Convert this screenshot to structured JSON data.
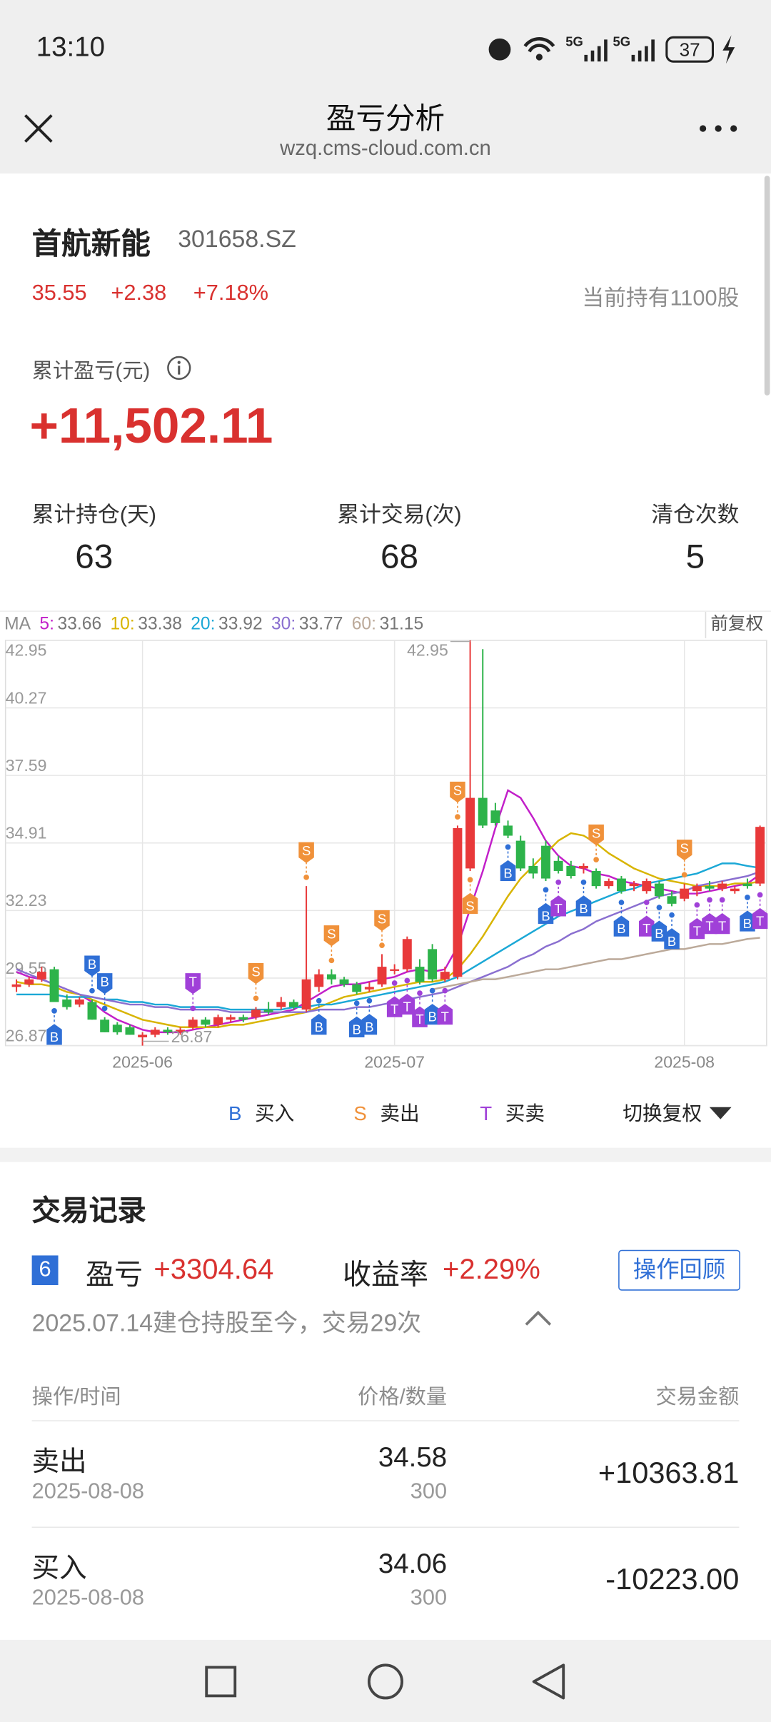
{
  "status_bar": {
    "time": "13:10",
    "network": [
      "5G",
      "5G"
    ],
    "battery": "37"
  },
  "nav": {
    "title": "盈亏分析",
    "url": "wzq.cms-cloud.com.cn"
  },
  "stock": {
    "name": "首航新能",
    "code": "301658.SZ",
    "price": "35.55",
    "change": "+2.38",
    "change_pct": "+7.18%",
    "holding": "当前持有1100股"
  },
  "pnl": {
    "label": "累计盈亏(元)",
    "value": "+11,502.11"
  },
  "stats": [
    {
      "label": "累计持仓(天)",
      "value": "63"
    },
    {
      "label": "累计交易(次)",
      "value": "68"
    },
    {
      "label": "清仓次数",
      "value": "5"
    }
  ],
  "chart_data": {
    "type": "candlestick",
    "up_color": "#e8393a",
    "down_color": "#2db34a",
    "ma_label": "MA",
    "adjust": "前复权",
    "ylim": [
      26.87,
      42.95
    ],
    "yticks": [
      26.87,
      29.55,
      32.23,
      34.91,
      37.59,
      40.27,
      42.95
    ],
    "xticks": [
      {
        "value": 10,
        "label": "2025-06"
      },
      {
        "value": 30,
        "label": "2025-07"
      },
      {
        "value": 53,
        "label": "2025-08"
      }
    ],
    "candles": [
      [
        29.2,
        29.5,
        29.0,
        29.3
      ],
      [
        29.3,
        29.6,
        29.2,
        29.5
      ],
      [
        29.5,
        30.0,
        29.4,
        29.8
      ],
      [
        29.9,
        30.0,
        28.6,
        28.6
      ],
      [
        28.7,
        28.9,
        28.3,
        28.4
      ],
      [
        28.5,
        28.8,
        28.4,
        28.7
      ],
      [
        28.6,
        28.7,
        27.9,
        27.9
      ],
      [
        27.9,
        28.0,
        27.4,
        27.4
      ],
      [
        27.7,
        27.8,
        27.3,
        27.4
      ],
      [
        27.6,
        27.7,
        27.3,
        27.3
      ],
      [
        27.2,
        27.4,
        26.87,
        27.3
      ],
      [
        27.3,
        27.6,
        27.2,
        27.5
      ],
      [
        27.5,
        27.6,
        27.3,
        27.4
      ],
      [
        27.4,
        27.6,
        27.3,
        27.5
      ],
      [
        27.6,
        28.0,
        27.5,
        27.9
      ],
      [
        27.9,
        28.0,
        27.6,
        27.7
      ],
      [
        27.7,
        28.1,
        27.6,
        28.0
      ],
      [
        27.9,
        28.1,
        27.8,
        28.0
      ],
      [
        28.0,
        28.1,
        27.8,
        27.9
      ],
      [
        28.0,
        28.4,
        27.9,
        28.3
      ],
      [
        28.3,
        28.6,
        28.1,
        28.2
      ],
      [
        28.4,
        28.8,
        28.3,
        28.6
      ],
      [
        28.6,
        28.7,
        28.3,
        28.4
      ],
      [
        28.3,
        33.2,
        28.2,
        29.5
      ],
      [
        29.2,
        29.9,
        29.0,
        29.7
      ],
      [
        29.7,
        29.9,
        29.3,
        29.5
      ],
      [
        29.5,
        29.6,
        29.2,
        29.3
      ],
      [
        29.3,
        29.4,
        28.9,
        29.0
      ],
      [
        29.1,
        29.4,
        29.0,
        29.2
      ],
      [
        29.3,
        30.5,
        29.2,
        30.0
      ],
      [
        29.9,
        30.1,
        29.7,
        29.9
      ],
      [
        29.9,
        31.2,
        29.8,
        31.1
      ],
      [
        30.0,
        30.3,
        29.3,
        29.4
      ],
      [
        30.7,
        30.9,
        29.4,
        29.5
      ],
      [
        29.5,
        30.0,
        29.4,
        29.8
      ],
      [
        29.6,
        35.6,
        29.5,
        35.5
      ],
      [
        33.9,
        42.95,
        33.8,
        36.7
      ],
      [
        36.7,
        42.6,
        35.5,
        35.6
      ],
      [
        36.2,
        36.5,
        35.6,
        35.7
      ],
      [
        35.6,
        35.8,
        35.1,
        35.2
      ],
      [
        35.0,
        35.2,
        33.8,
        33.9
      ],
      [
        34.0,
        34.3,
        33.5,
        33.7
      ],
      [
        34.8,
        35.0,
        33.4,
        33.5
      ],
      [
        34.2,
        34.4,
        33.7,
        33.8
      ],
      [
        34.0,
        34.2,
        33.5,
        33.6
      ],
      [
        33.9,
        34.1,
        33.7,
        34.0
      ],
      [
        33.8,
        33.9,
        33.1,
        33.2
      ],
      [
        33.2,
        33.5,
        33.1,
        33.4
      ],
      [
        33.5,
        33.6,
        32.9,
        33.0
      ],
      [
        33.2,
        33.4,
        33.0,
        33.3
      ],
      [
        33.0,
        33.5,
        32.9,
        33.4
      ],
      [
        33.3,
        33.4,
        32.7,
        32.8
      ],
      [
        32.8,
        33.0,
        32.4,
        32.5
      ],
      [
        32.7,
        33.3,
        32.6,
        33.1
      ],
      [
        33.0,
        33.3,
        32.8,
        33.2
      ],
      [
        33.2,
        33.4,
        33.0,
        33.1
      ],
      [
        33.1,
        33.4,
        33.0,
        33.3
      ],
      [
        33.0,
        33.2,
        32.9,
        33.1
      ],
      [
        33.3,
        33.5,
        33.1,
        33.2
      ],
      [
        33.3,
        35.6,
        33.2,
        35.55
      ]
    ],
    "ma": [
      {
        "name": "5:",
        "color": "#c21fc9",
        "values": [
          29.8,
          29.6,
          29.5,
          29.3,
          29.1,
          28.9,
          28.6,
          28.2,
          27.9,
          27.7,
          27.5,
          27.4,
          27.4,
          27.4,
          27.5,
          27.6,
          27.7,
          27.8,
          27.9,
          28.0,
          28.1,
          28.2,
          28.3,
          28.6,
          28.9,
          29.2,
          29.3,
          29.3,
          29.4,
          29.5,
          29.6,
          29.8,
          29.9,
          29.8,
          29.9,
          30.8,
          32.3,
          33.8,
          35.5,
          37.0,
          36.7,
          35.9,
          35.0,
          34.4,
          34.0,
          33.9,
          33.7,
          33.6,
          33.4,
          33.3,
          33.2,
          33.1,
          33.0,
          32.9,
          32.9,
          33.0,
          33.1,
          33.2,
          33.3,
          33.66
        ]
      },
      {
        "name": "10:",
        "color": "#d8b400",
        "values": [
          29.4,
          29.3,
          29.3,
          29.2,
          29.0,
          28.9,
          28.7,
          28.5,
          28.3,
          28.1,
          27.9,
          27.8,
          27.7,
          27.6,
          27.6,
          27.6,
          27.6,
          27.7,
          27.7,
          27.8,
          27.9,
          28.0,
          28.1,
          28.2,
          28.4,
          28.6,
          28.8,
          28.9,
          29.0,
          29.1,
          29.2,
          29.3,
          29.4,
          29.4,
          29.5,
          29.9,
          30.5,
          31.2,
          32.0,
          32.8,
          33.5,
          34.0,
          34.5,
          35.0,
          35.3,
          35.2,
          34.9,
          34.5,
          34.2,
          33.9,
          33.7,
          33.5,
          33.4,
          33.3,
          33.2,
          33.2,
          33.2,
          33.3,
          33.3,
          33.38
        ]
      },
      {
        "name": "20:",
        "color": "#1ba8d6",
        "values": [
          28.9,
          28.9,
          28.9,
          28.9,
          28.8,
          28.8,
          28.8,
          28.7,
          28.7,
          28.6,
          28.6,
          28.5,
          28.5,
          28.4,
          28.4,
          28.4,
          28.4,
          28.3,
          28.3,
          28.3,
          28.3,
          28.3,
          28.4,
          28.4,
          28.5,
          28.5,
          28.6,
          28.7,
          28.8,
          28.9,
          29.0,
          29.1,
          29.2,
          29.3,
          29.4,
          29.6,
          29.9,
          30.2,
          30.5,
          30.8,
          31.1,
          31.4,
          31.7,
          32.0,
          32.2,
          32.4,
          32.6,
          32.8,
          33.0,
          33.1,
          33.3,
          33.4,
          33.5,
          33.6,
          33.7,
          33.9,
          34.1,
          34.1,
          34.0,
          33.92
        ]
      },
      {
        "name": "30:",
        "color": "#8a6fd0",
        "values": [
          29.9,
          29.7,
          29.5,
          29.3,
          29.1,
          28.9,
          28.8,
          28.7,
          28.6,
          28.5,
          28.5,
          28.4,
          28.4,
          28.3,
          28.3,
          28.3,
          28.3,
          28.2,
          28.2,
          28.2,
          28.2,
          28.2,
          28.2,
          28.2,
          28.3,
          28.3,
          28.3,
          28.4,
          28.4,
          28.5,
          28.6,
          28.7,
          28.8,
          28.9,
          29.0,
          29.2,
          29.4,
          29.6,
          29.8,
          30.0,
          30.3,
          30.5,
          30.8,
          31.0,
          31.3,
          31.5,
          31.8,
          32.0,
          32.2,
          32.4,
          32.6,
          32.8,
          32.9,
          33.0,
          33.2,
          33.3,
          33.4,
          33.5,
          33.6,
          33.77
        ]
      },
      {
        "name": "60:",
        "color": "#bba999",
        "values": [
          null,
          null,
          null,
          null,
          null,
          null,
          null,
          null,
          null,
          null,
          null,
          null,
          null,
          null,
          null,
          null,
          null,
          null,
          null,
          null,
          null,
          null,
          null,
          null,
          null,
          null,
          null,
          null,
          null,
          null,
          null,
          null,
          null,
          29.1,
          29.2,
          29.3,
          29.4,
          29.5,
          29.5,
          29.6,
          29.7,
          29.8,
          29.9,
          29.9,
          30.0,
          30.1,
          30.2,
          30.3,
          30.3,
          30.4,
          30.5,
          30.6,
          30.7,
          30.7,
          30.8,
          30.9,
          30.9,
          31.0,
          31.1,
          31.15
        ]
      }
    ],
    "markers": [
      {
        "at": 3,
        "label": "B",
        "pos": "below"
      },
      {
        "at": 6,
        "label": "B",
        "pos": "above"
      },
      {
        "at": 7,
        "label": "B",
        "pos": "above"
      },
      {
        "at": 14,
        "label": "T",
        "pos": "above"
      },
      {
        "at": 19,
        "label": "S",
        "pos": "above"
      },
      {
        "at": 23,
        "label": "S",
        "pos": "above"
      },
      {
        "at": 24,
        "label": "B",
        "pos": "below"
      },
      {
        "at": 25,
        "label": "S",
        "pos": "above"
      },
      {
        "at": 27,
        "label": "B",
        "pos": "below"
      },
      {
        "at": 28,
        "label": "B",
        "pos": "below"
      },
      {
        "at": 29,
        "label": "S",
        "pos": "above"
      },
      {
        "at": 30,
        "label": "T",
        "pos": "below"
      },
      {
        "at": 31,
        "label": "T",
        "pos": "below"
      },
      {
        "at": 32,
        "label": "T",
        "pos": "below"
      },
      {
        "at": 33,
        "label": "B",
        "pos": "below"
      },
      {
        "at": 34,
        "label": "T",
        "pos": "below"
      },
      {
        "at": 35,
        "label": "S",
        "pos": "above"
      },
      {
        "at": 36,
        "label": "S",
        "pos": "below"
      },
      {
        "at": 39,
        "label": "B",
        "pos": "below"
      },
      {
        "at": 42,
        "label": "B",
        "pos": "below"
      },
      {
        "at": 43,
        "label": "T",
        "pos": "below"
      },
      {
        "at": 45,
        "label": "B",
        "pos": "below"
      },
      {
        "at": 46,
        "label": "S",
        "pos": "above"
      },
      {
        "at": 48,
        "label": "B",
        "pos": "below"
      },
      {
        "at": 50,
        "label": "T",
        "pos": "below"
      },
      {
        "at": 51,
        "label": "B",
        "pos": "below"
      },
      {
        "at": 52,
        "label": "B",
        "pos": "below"
      },
      {
        "at": 53,
        "label": "S",
        "pos": "above"
      },
      {
        "at": 54,
        "label": "T",
        "pos": "below"
      },
      {
        "at": 55,
        "label": "T",
        "pos": "below"
      },
      {
        "at": 56,
        "label": "T",
        "pos": "below"
      },
      {
        "at": 58,
        "label": "B",
        "pos": "below"
      },
      {
        "at": 59,
        "label": "T",
        "pos": "below"
      }
    ],
    "legend": [
      {
        "label": "B",
        "text": "买入",
        "color": "#2f6fd6"
      },
      {
        "label": "S",
        "text": "卖出",
        "color": "#f0913a"
      },
      {
        "label": "T",
        "text": "买卖",
        "color": "#a040d8"
      }
    ],
    "switch": "切换复权"
  },
  "records": {
    "title": "交易记录",
    "badge": "6",
    "pnl_label": "盈亏",
    "pnl": "+3304.64",
    "yield_label": "收益率",
    "yield": "+2.29%",
    "button": "操作回顾",
    "summary": "2025.07.14建仓持股至今，交易29次",
    "columns": [
      "操作/时间",
      "价格/数量",
      "交易金额"
    ],
    "rows": [
      {
        "action": "卖出",
        "date": "2025-08-08",
        "price": "34.58",
        "qty": "300",
        "amount": "+10363.81"
      },
      {
        "action": "买入",
        "date": "2025-08-08",
        "price": "34.06",
        "qty": "300",
        "amount": "-10223.00"
      }
    ]
  }
}
